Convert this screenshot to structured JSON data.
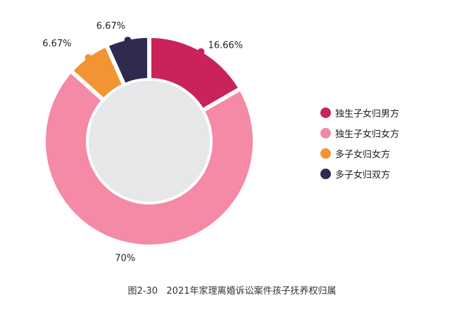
{
  "chart_data": {
    "type": "pie",
    "variant": "donut",
    "categories": [
      "独生子女归男方",
      "独生子女归女方",
      "多子女归女方",
      "多子女归双方"
    ],
    "values": [
      16.66,
      70,
      6.67,
      6.67
    ],
    "value_labels": [
      "16.66%",
      "70%",
      "6.67%",
      "6.67%"
    ],
    "colors": [
      "#C9235A",
      "#F48AA5",
      "#F29434",
      "#2E2A50"
    ],
    "center_color": "#E6E7E9",
    "legend_position": "right",
    "caption": "图2-30   2021年家理离婚诉讼案件孩子抚养权归属"
  }
}
